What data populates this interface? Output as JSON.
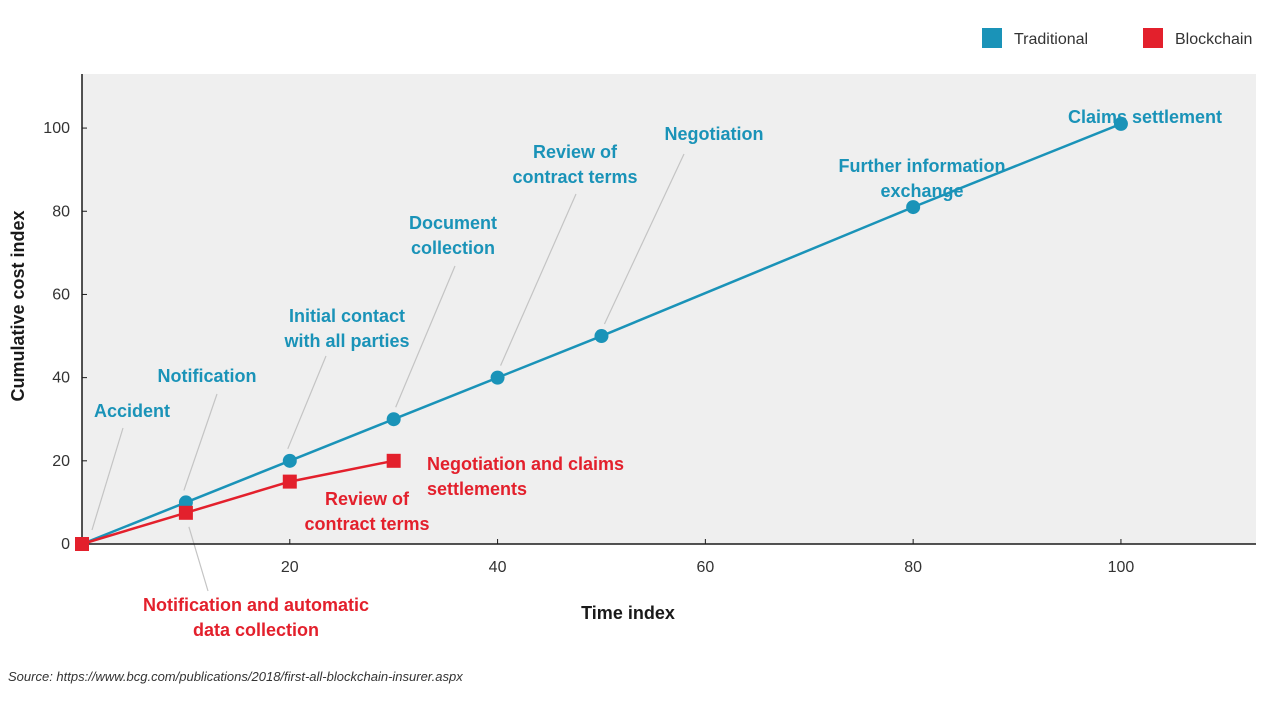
{
  "chart_data": {
    "type": "line",
    "title": "",
    "xlabel": "Time index",
    "ylabel": "Cumulative cost index",
    "xlim": [
      0,
      113
    ],
    "ylim": [
      0,
      113
    ],
    "xticks": [
      20,
      40,
      60,
      80,
      100
    ],
    "yticks": [
      0,
      20,
      40,
      60,
      80,
      100
    ],
    "legend_position": "top-right",
    "colors": {
      "Traditional": "#1a93b8",
      "Blockchain": "#e3202c"
    },
    "series": [
      {
        "name": "Traditional",
        "marker": "circle",
        "x": [
          0,
          10,
          20,
          30,
          40,
          50,
          80,
          100
        ],
        "y": [
          0,
          10,
          20,
          30,
          40,
          50,
          81,
          101
        ]
      },
      {
        "name": "Blockchain",
        "marker": "square",
        "x": [
          0,
          10,
          20,
          30
        ],
        "y": [
          0,
          7.5,
          15,
          20
        ]
      }
    ],
    "annotations": [
      {
        "series": "Traditional",
        "lines": [
          "Accident"
        ]
      },
      {
        "series": "Traditional",
        "lines": [
          "Notification"
        ]
      },
      {
        "series": "Traditional",
        "lines": [
          "Initial contact",
          "with all parties"
        ]
      },
      {
        "series": "Traditional",
        "lines": [
          "Document",
          "collection"
        ]
      },
      {
        "series": "Traditional",
        "lines": [
          "Review of",
          "contract terms"
        ]
      },
      {
        "series": "Traditional",
        "lines": [
          "Negotiation"
        ]
      },
      {
        "series": "Traditional",
        "lines": [
          "Further information",
          "exchange"
        ]
      },
      {
        "series": "Traditional",
        "lines": [
          "Claims settlement"
        ]
      },
      {
        "series": "Blockchain",
        "lines": [
          "Notification and automatic",
          "data collection"
        ]
      },
      {
        "series": "Blockchain",
        "lines": [
          "Review of",
          "contract terms"
        ]
      },
      {
        "series": "Blockchain",
        "lines": [
          "Negotiation and claims",
          "settlements"
        ]
      }
    ]
  },
  "source": "Source: https://www.bcg.com/publications/2018/first-all-blockchain-insurer.aspx"
}
